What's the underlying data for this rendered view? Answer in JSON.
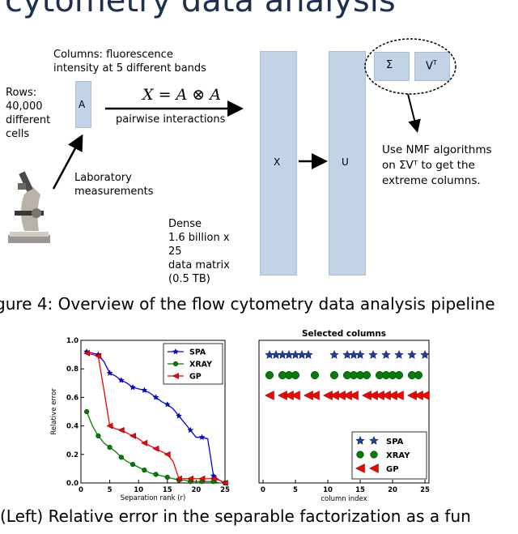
{
  "header": {
    "title_fragment": "cytometry data analysis"
  },
  "diagram": {
    "columns_label": [
      "Columns: fluorescence",
      "intensity at 5 different bands"
    ],
    "rows_label": [
      "Rows:",
      "40,000",
      "different",
      "cells"
    ],
    "matrix_a": "A",
    "formula": "X = A ⊗ A",
    "pairwise": "pairwise interactions",
    "lab": [
      "Laboratory",
      "measurements"
    ],
    "dense": [
      "Dense",
      "1.6 billion x",
      "25",
      "data matrix",
      "(0.5 TB)"
    ],
    "matrix_x": "X",
    "matrix_u": "U",
    "sigma": "Σ",
    "vt": "V",
    "vt_sup": "T",
    "nmf": [
      "Use NMF algorithms",
      "on ΣVᵀ to get the",
      "extreme columns."
    ]
  },
  "figure_caption": "gure 4:  Overview of the flow cytometry data analysis pipeline",
  "bottom_caption": "(Left)  Relative error in the separable factorization as a fun",
  "icons": {
    "microscope": "microscope-icon"
  },
  "chart_data": [
    {
      "type": "line",
      "title": "",
      "xlabel": "Separation rank (r)",
      "ylabel": "Relative error",
      "xlim": [
        0,
        25
      ],
      "ylim": [
        0,
        1.0
      ],
      "xticks": [
        "0",
        "5",
        "10",
        "15",
        "20",
        "25"
      ],
      "yticks": [
        "0.0",
        "0.2",
        "0.4",
        "0.6",
        "0.8",
        "1.0"
      ],
      "legend_position": "top-right",
      "series": [
        {
          "name": "SPA",
          "color": "#0000ff",
          "marker": "star",
          "x": [
            1,
            2,
            3,
            4,
            5,
            6,
            7,
            8,
            9,
            10,
            11,
            12,
            13,
            14,
            15,
            16,
            17,
            18,
            19,
            20,
            21,
            22,
            23,
            24,
            25
          ],
          "y": [
            0.92,
            0.91,
            0.9,
            0.85,
            0.77,
            0.75,
            0.72,
            0.7,
            0.67,
            0.66,
            0.65,
            0.63,
            0.6,
            0.57,
            0.55,
            0.52,
            0.47,
            0.42,
            0.37,
            0.32,
            0.32,
            0.31,
            0.05,
            0.02,
            0.0
          ]
        },
        {
          "name": "XRAY",
          "color": "#008000",
          "marker": "circle",
          "x": [
            1,
            2,
            3,
            4,
            5,
            6,
            7,
            8,
            9,
            10,
            11,
            12,
            13,
            14,
            15,
            16,
            17,
            18,
            19,
            20,
            21,
            22,
            23,
            24,
            25
          ],
          "y": [
            0.5,
            0.4,
            0.33,
            0.28,
            0.25,
            0.22,
            0.18,
            0.15,
            0.13,
            0.11,
            0.09,
            0.07,
            0.06,
            0.05,
            0.04,
            0.03,
            0.02,
            0.02,
            0.01,
            0.01,
            0.01,
            0.01,
            0.01,
            0.0,
            0.0
          ]
        },
        {
          "name": "GP",
          "color": "#ff0000",
          "marker": "triangle-left",
          "x": [
            1,
            2,
            3,
            4,
            5,
            6,
            7,
            8,
            9,
            10,
            11,
            12,
            13,
            14,
            15,
            16,
            17,
            18,
            19,
            20,
            21,
            22,
            23,
            24,
            25
          ],
          "y": [
            0.91,
            0.9,
            0.89,
            0.65,
            0.4,
            0.38,
            0.37,
            0.35,
            0.33,
            0.31,
            0.28,
            0.26,
            0.24,
            0.22,
            0.2,
            0.15,
            0.03,
            0.03,
            0.03,
            0.03,
            0.03,
            0.03,
            0.03,
            0.02,
            0.0
          ]
        }
      ]
    },
    {
      "type": "scatter",
      "title": "Selected columns",
      "xlabel": "column index",
      "ylabel": "",
      "xlim": [
        0,
        25
      ],
      "xticks": [
        "0",
        "5",
        "10",
        "15",
        "20",
        "25"
      ],
      "legend_position": "bottom-right",
      "series": [
        {
          "name": "SPA",
          "color": "#1f3f9f",
          "marker": "star",
          "row": 3,
          "x": [
            1,
            2,
            3,
            4,
            5,
            6,
            7,
            11,
            13,
            14,
            15,
            17,
            19,
            21,
            23,
            25
          ]
        },
        {
          "name": "XRAY",
          "color": "#008000",
          "marker": "circle",
          "row": 2,
          "x": [
            1,
            3,
            4,
            5,
            8,
            11,
            13,
            14,
            15,
            16,
            18,
            19,
            20,
            21,
            23,
            24
          ]
        },
        {
          "name": "GP",
          "color": "#ff0000",
          "marker": "triangle-left",
          "row": 1,
          "x": [
            1,
            3,
            4,
            5,
            7,
            8,
            10,
            11,
            12,
            13,
            14,
            16,
            17,
            18,
            19,
            20,
            21,
            23,
            24,
            25
          ]
        }
      ]
    }
  ]
}
